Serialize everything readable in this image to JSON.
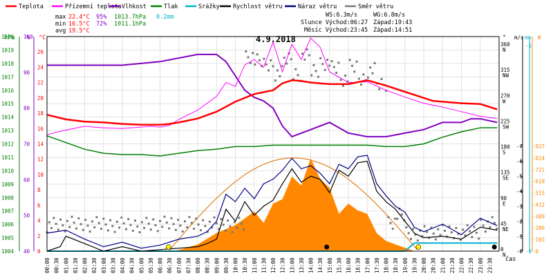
{
  "chart_data": {
    "type": "line",
    "title": "4.9.2018",
    "legend": [
      {
        "name": "Teplota",
        "color": "#ff0000"
      },
      {
        "name": "Přízemní teplota",
        "color": "#ff00ff"
      },
      {
        "name": "Vlhkost",
        "color": "#8000c0"
      },
      {
        "name": "Tlak",
        "color": "#008000"
      },
      {
        "name": "Srážky",
        "color": "#00b0d0"
      },
      {
        "name": "Rychlost větru",
        "color": "#000000"
      },
      {
        "name": "Náraz větru",
        "color": "#000080"
      },
      {
        "name": "Směr větru",
        "color": "#777777"
      }
    ],
    "stats": [
      {
        "label": "max",
        "temp": "22.4°C",
        "hum": "95%",
        "press": "1013.7hPa",
        "rain": "0.2mm"
      },
      {
        "label": "min",
        "temp": "16.5°C",
        "hum": "72%",
        "press": "1011.1hPa",
        "rain": ""
      },
      {
        "label": "avg",
        "temp": "19.5°C",
        "hum": "",
        "press": "",
        "rain": ""
      }
    ],
    "info": {
      "ws": "WS:6.3m/s",
      "wg": "WG:6.8m/s",
      "sun": "Slunce Východ:06:27",
      "sun_set": "Západ:19:43",
      "moon": "Měsíc Východ:23:45",
      "moon_set": "Západ:14:51"
    },
    "x_label": "čas",
    "x_ticks": [
      "00:00",
      "00:30",
      "01:00",
      "01:30",
      "02:00",
      "02:30",
      "03:00",
      "03:30",
      "04:00",
      "04:30",
      "05:00",
      "05:30",
      "06:00",
      "06:30",
      "07:00",
      "07:30",
      "08:00",
      "08:30",
      "09:00",
      "09:30",
      "10:00",
      "10:30",
      "11:00",
      "11:30",
      "12:00",
      "12:30",
      "13:00",
      "13:30",
      "14:00",
      "14:30",
      "15:00",
      "15:30",
      "16:00",
      "16:30",
      "17:00",
      "17:30",
      "18:00",
      "18:30",
      "19:00",
      "19:30",
      "20:00",
      "20:30",
      "21:00",
      "21:30",
      "22:00",
      "22:30",
      "23:00",
      "23:30"
    ],
    "axes": {
      "hpa": {
        "label": "hPa",
        "range": [
          1004,
          1020
        ],
        "ticks": [
          1004,
          1005,
          1006,
          1007,
          1008,
          1009,
          1010,
          1011,
          1012,
          1013,
          1014,
          1015,
          1016,
          1017,
          1018,
          1019,
          1020
        ],
        "color": "#008000"
      },
      "pct": {
        "label": "%",
        "range": [
          40,
          100
        ],
        "ticks": [
          40,
          50,
          60,
          70,
          80,
          90,
          100
        ],
        "color": "#8000c0"
      },
      "temp": {
        "label": "°C",
        "range": [
          0,
          28
        ],
        "ticks": [
          0,
          2,
          4,
          6,
          8,
          10,
          12,
          14,
          16,
          18,
          20,
          22,
          24,
          26
        ],
        "color": "#ff0000"
      },
      "dir": {
        "label": "°",
        "ticks": [
          {
            "v": "0",
            "l": "N"
          },
          {
            "v": "45",
            "l": "NE"
          },
          {
            "v": "90",
            "l": "E"
          },
          {
            "v": "135",
            "l": "SE"
          },
          {
            "v": "180",
            "l": "S"
          },
          {
            "v": "225",
            "l": "SW"
          },
          {
            "v": "270",
            "l": "W"
          },
          {
            "v": "315",
            "l": "NW"
          },
          {
            "v": "360",
            "l": "N"
          }
        ]
      },
      "ms": {
        "label": "m/s",
        "ticks": [
          "0",
          "1",
          "2",
          "3",
          "4",
          "5",
          "6",
          "7"
        ]
      },
      "mm": {
        "label": "mm",
        "ticks": [
          "0",
          "1"
        ]
      },
      "w": {
        "label": "W",
        "ticks": [
          "0",
          "103",
          "206",
          "309",
          "412",
          "515",
          "618",
          "721",
          "824",
          "927"
        ]
      }
    },
    "series": {
      "temperature": {
        "unit": "°C",
        "x": [
          0,
          1,
          2,
          3,
          4,
          5,
          6,
          6.5,
          7,
          8,
          9,
          10,
          11,
          12,
          12.5,
          13,
          13.5,
          14,
          15,
          16,
          17,
          18,
          19,
          20,
          20.5,
          21,
          22,
          23,
          23.9
        ],
        "y": [
          17.8,
          17.2,
          16.9,
          16.8,
          16.6,
          16.5,
          16.5,
          16.6,
          16.8,
          17.3,
          18.2,
          19.5,
          20.5,
          21.0,
          21.9,
          22.3,
          22.2,
          22.0,
          21.8,
          21.8,
          22.3,
          21.6,
          20.8,
          20.0,
          19.6,
          19.5,
          19.3,
          19.2,
          18.5
        ]
      },
      "ground_temperature": {
        "unit": "°C",
        "x": [
          0,
          1,
          2,
          3,
          4,
          5,
          5.5,
          6,
          6.5,
          7,
          8,
          9,
          9.5,
          10,
          10.5,
          11,
          11.5,
          12,
          12.5,
          13,
          13.5,
          14,
          14.5,
          15,
          16,
          17,
          18,
          19,
          20,
          21,
          22,
          23,
          23.9
        ],
        "y": [
          15.2,
          15.8,
          16.3,
          16.1,
          16.0,
          16.2,
          16.3,
          16.2,
          16.4,
          17.2,
          18.4,
          20.2,
          22.0,
          21.5,
          24.3,
          25.0,
          24.0,
          27.3,
          23.4,
          27.0,
          25.0,
          27.8,
          26.6,
          23.4,
          22.0,
          22.1,
          21.0,
          20.1,
          19.3,
          18.8,
          18.2,
          17.6,
          17.3
        ]
      },
      "humidity": {
        "unit": "%",
        "x": [
          0,
          2,
          4,
          6,
          8,
          9,
          9.5,
          10,
          10.5,
          11,
          11.5,
          12,
          12.5,
          13,
          14,
          15,
          16,
          17,
          18,
          19,
          20,
          21,
          22,
          22.5,
          23,
          23.9
        ],
        "y": [
          92,
          92,
          92,
          93,
          95,
          95,
          93,
          89,
          85,
          83,
          82,
          80,
          75,
          72,
          74,
          76,
          73,
          72,
          72,
          73,
          74,
          76,
          76,
          77,
          77,
          76
        ]
      },
      "pressure": {
        "unit": "hPa",
        "x": [
          0,
          1,
          2,
          3,
          4,
          5,
          6,
          7,
          8,
          9,
          10,
          11,
          12,
          13,
          14,
          15,
          16,
          17,
          18,
          19,
          20,
          21,
          22,
          23,
          23.9
        ],
        "y": [
          1012.6,
          1012.1,
          1011.6,
          1011.3,
          1011.2,
          1011.2,
          1011.1,
          1011.3,
          1011.5,
          1011.6,
          1011.8,
          1011.8,
          1011.9,
          1011.9,
          1011.9,
          1011.9,
          1011.9,
          1011.9,
          1011.8,
          1011.8,
          1012.0,
          1012.5,
          1012.9,
          1013.2,
          1013.2
        ]
      },
      "rain": {
        "unit": "mm",
        "x": [
          0,
          19,
          19.5,
          23.9
        ],
        "y": [
          0,
          0,
          0.2,
          0.2
        ]
      },
      "wind_speed": {
        "unit": "m/s",
        "x": [
          0,
          0.7,
          1,
          2,
          3,
          4,
          5,
          6,
          7,
          8,
          8.5,
          9,
          9.5,
          10,
          10.5,
          11,
          11.5,
          12,
          12.5,
          13,
          13.5,
          14,
          14.5,
          15,
          15.5,
          16,
          16.5,
          17,
          17.5,
          18,
          18.5,
          19,
          19.5,
          20,
          21,
          22,
          23,
          23.9
        ],
        "y": [
          0,
          0.3,
          1,
          0.5,
          0,
          0.3,
          0,
          0.1,
          0.2,
          0.3,
          0.5,
          0.8,
          2.8,
          2.0,
          3.3,
          2.4,
          3.0,
          3.4,
          4.5,
          5.5,
          4.6,
          5.0,
          4.8,
          3.9,
          5.4,
          5.0,
          5.9,
          6.0,
          4.0,
          3.3,
          2.8,
          2.0,
          1.2,
          0.9,
          1.0,
          0.8,
          1.6,
          1.4
        ]
      },
      "wind_gust": {
        "unit": "m/s",
        "x": [
          0,
          1,
          2,
          3,
          4,
          5,
          6,
          7,
          8,
          8.5,
          9,
          9.5,
          10,
          10.5,
          11,
          11.5,
          12,
          12.5,
          13,
          13.5,
          14,
          14.5,
          15,
          15.5,
          16,
          16.5,
          17,
          17.5,
          18,
          18.5,
          19,
          19.5,
          20,
          21,
          22,
          23,
          23.9
        ],
        "y": [
          1.2,
          1.4,
          0.8,
          0.3,
          0.6,
          0.2,
          0.4,
          0.8,
          1.0,
          1.3,
          2.0,
          3.8,
          3.3,
          4.2,
          3.5,
          4.5,
          4.8,
          5.4,
          6.2,
          5.5,
          5.7,
          5.2,
          4.5,
          5.8,
          5.5,
          6.3,
          6.4,
          4.5,
          3.7,
          3.0,
          2.6,
          1.6,
          1.3,
          1.8,
          1.1,
          2.2,
          1.7
        ]
      },
      "solar": {
        "unit": "W",
        "x": [
          0,
          6.5,
          7,
          8,
          9,
          10,
          11,
          11.5,
          12,
          12.5,
          13,
          13.5,
          14,
          14.5,
          15,
          15.5,
          16,
          16.5,
          17,
          17.5,
          18,
          18.5,
          19,
          19.5,
          23.9
        ],
        "y": [
          0,
          0,
          10,
          60,
          160,
          230,
          350,
          250,
          420,
          460,
          660,
          580,
          820,
          640,
          560,
          330,
          420,
          360,
          330,
          160,
          90,
          60,
          30,
          0,
          0
        ]
      },
      "wind_direction": {
        "unit": "°",
        "x": [
          0,
          9,
          10,
          10.5,
          11,
          11.5,
          12,
          12.5,
          13,
          13.5,
          14,
          14.5,
          15,
          15.5,
          16,
          16.5,
          17,
          17.5,
          18,
          18.5,
          19,
          20,
          21,
          22,
          23,
          23.9
        ],
        "y": [
          45,
          45,
          45,
          340,
          330,
          325,
          310,
          335,
          310,
          340,
          315,
          330,
          320,
          300,
          320,
          300,
          315,
          290,
          50,
          60,
          30,
          30,
          30,
          30,
          45,
          45
        ]
      }
    }
  }
}
